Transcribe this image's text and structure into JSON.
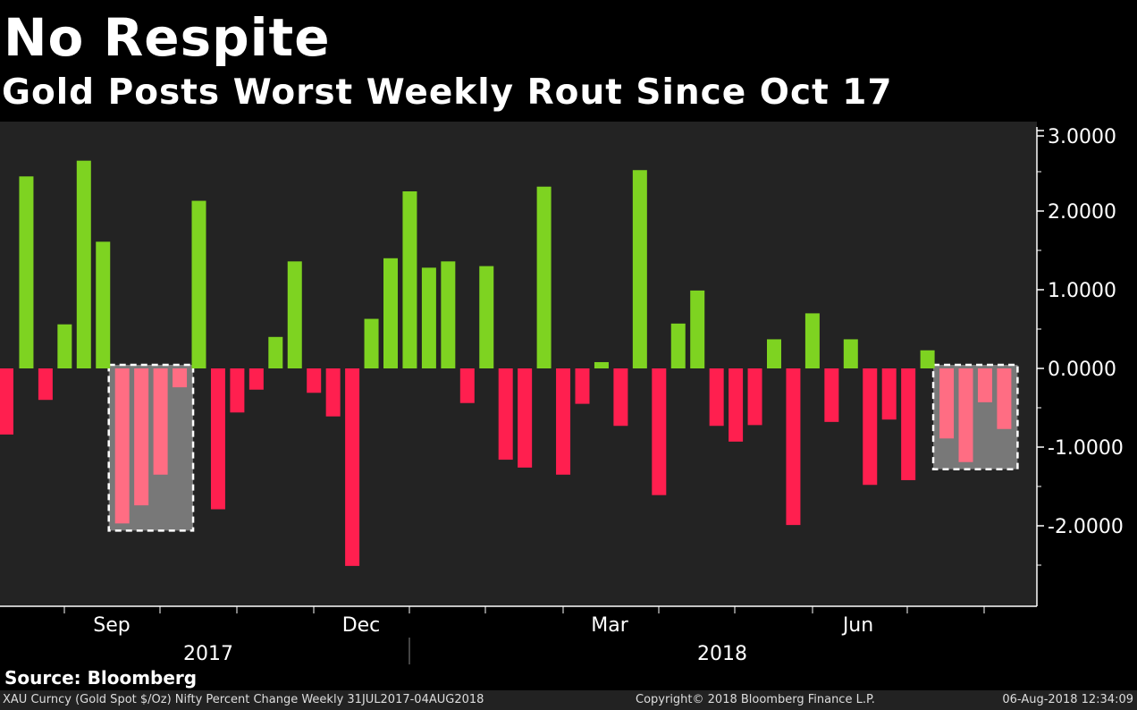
{
  "header": {
    "title": "No Respite",
    "subtitle": "Gold Posts Worst Weekly Rout Since Oct 17"
  },
  "source": "Source: Bloomberg",
  "footer": {
    "description": "XAU Curncy (Gold Spot  $/Oz) Nifty Percent Change  Weekly 31JUL2017-04AUG2018",
    "copyright": "Copyright© 2018 Bloomberg Finance L.P.",
    "timestamp": "06-Aug-2018 12:34:09"
  },
  "colors": {
    "background": "#000000",
    "plot_background": "#232323",
    "positive": "#7ed321",
    "negative": "#ff1f4f",
    "highlight_negative": "#ff6d83",
    "highlight_box": "#787878",
    "axis": "#ffffff"
  },
  "chart_data": {
    "type": "bar",
    "title": "No Respite",
    "subtitle": "Gold Posts Worst Weekly Rout Since Oct 17",
    "xlabel": "",
    "ylabel": "",
    "ylim": [
      -3.0,
      3.0
    ],
    "yticks": [
      3.0,
      2.0,
      1.0,
      0.0,
      -1.0,
      -2.0
    ],
    "ytick_labels": [
      "3.0000",
      "2.0000",
      "1.0000",
      "0.0000",
      "-1.0000",
      "-2.0000"
    ],
    "y_axis_side": "right",
    "x_month_labels": [
      "Sep",
      "Dec",
      "Mar",
      "Jun"
    ],
    "x_year_labels": [
      "2017",
      "2018"
    ],
    "grid": false,
    "legend": "none",
    "values": [
      -0.84,
      2.44,
      -0.4,
      0.56,
      2.64,
      1.61,
      -1.97,
      -1.74,
      -1.35,
      -0.24,
      2.13,
      -1.79,
      -0.56,
      -0.27,
      0.4,
      1.36,
      -0.31,
      -0.61,
      -2.51,
      0.63,
      1.4,
      2.25,
      1.28,
      1.36,
      -0.44,
      1.3,
      -1.16,
      -1.26,
      2.31,
      -1.35,
      -0.45,
      0.08,
      -0.73,
      2.52,
      -1.61,
      0.57,
      0.99,
      -0.73,
      -0.93,
      -0.72,
      0.37,
      -1.99,
      0.7,
      -0.68,
      0.37,
      -1.48,
      -0.65,
      -1.42,
      0.23,
      -0.89,
      -1.19,
      -0.43,
      -0.77
    ],
    "highlighted_ranges": [
      [
        6,
        9
      ],
      [
        49,
        52
      ]
    ]
  }
}
